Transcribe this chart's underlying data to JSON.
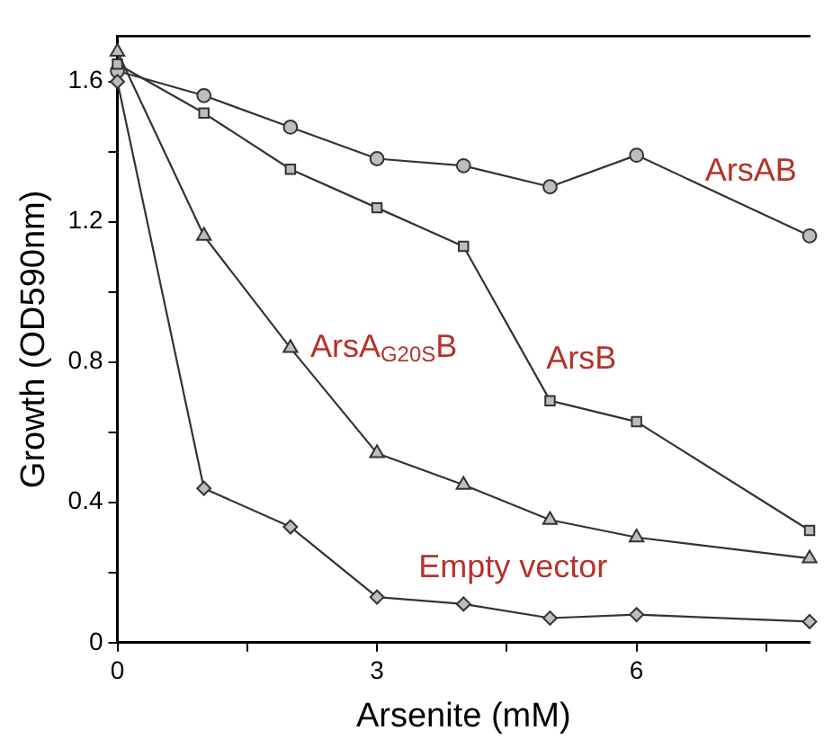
{
  "chart_data": {
    "type": "line",
    "xlabel": "Arsenite (mM)",
    "ylabel": "Growth (OD590nm)",
    "x": [
      0,
      1,
      2,
      3,
      4,
      5,
      6,
      8
    ],
    "xlim": [
      0,
      8
    ],
    "xticks": [
      0,
      {
        "value": 1.5,
        "label": null
      },
      3,
      {
        "value": 4.5,
        "label": null
      },
      6,
      {
        "value": 7.5,
        "label": null
      }
    ],
    "ylim": [
      0,
      1.73
    ],
    "yticks": [
      0,
      {
        "value": 0.2,
        "label": null
      },
      0.4,
      {
        "value": 0.6,
        "label": null
      },
      0.8,
      {
        "value": 1.0,
        "label": null
      },
      1.2,
      {
        "value": 1.4,
        "label": null
      },
      1.6
    ],
    "grid": false,
    "legend": false,
    "line_style": "solid",
    "series": [
      {
        "name": "ArsAB",
        "color": "#333333",
        "marker": "circle",
        "values": [
          1.63,
          1.56,
          1.47,
          1.38,
          1.36,
          1.3,
          1.39,
          1.16
        ]
      },
      {
        "name": "ArsB",
        "color": "#333333",
        "marker": "square",
        "values": [
          1.65,
          1.51,
          1.35,
          1.24,
          1.13,
          0.69,
          0.63,
          0.32
        ]
      },
      {
        "name": "ArsA$_{G20S}$B",
        "color": "#333333",
        "marker": "triangle",
        "values": [
          1.685,
          1.16,
          0.84,
          0.54,
          0.45,
          0.35,
          0.3,
          0.24
        ]
      },
      {
        "name": "Empty vector",
        "color": "#333333",
        "marker": "diamond",
        "values": [
          1.6,
          0.44,
          0.33,
          0.13,
          0.11,
          0.07,
          0.08,
          0.06
        ]
      }
    ]
  }
}
